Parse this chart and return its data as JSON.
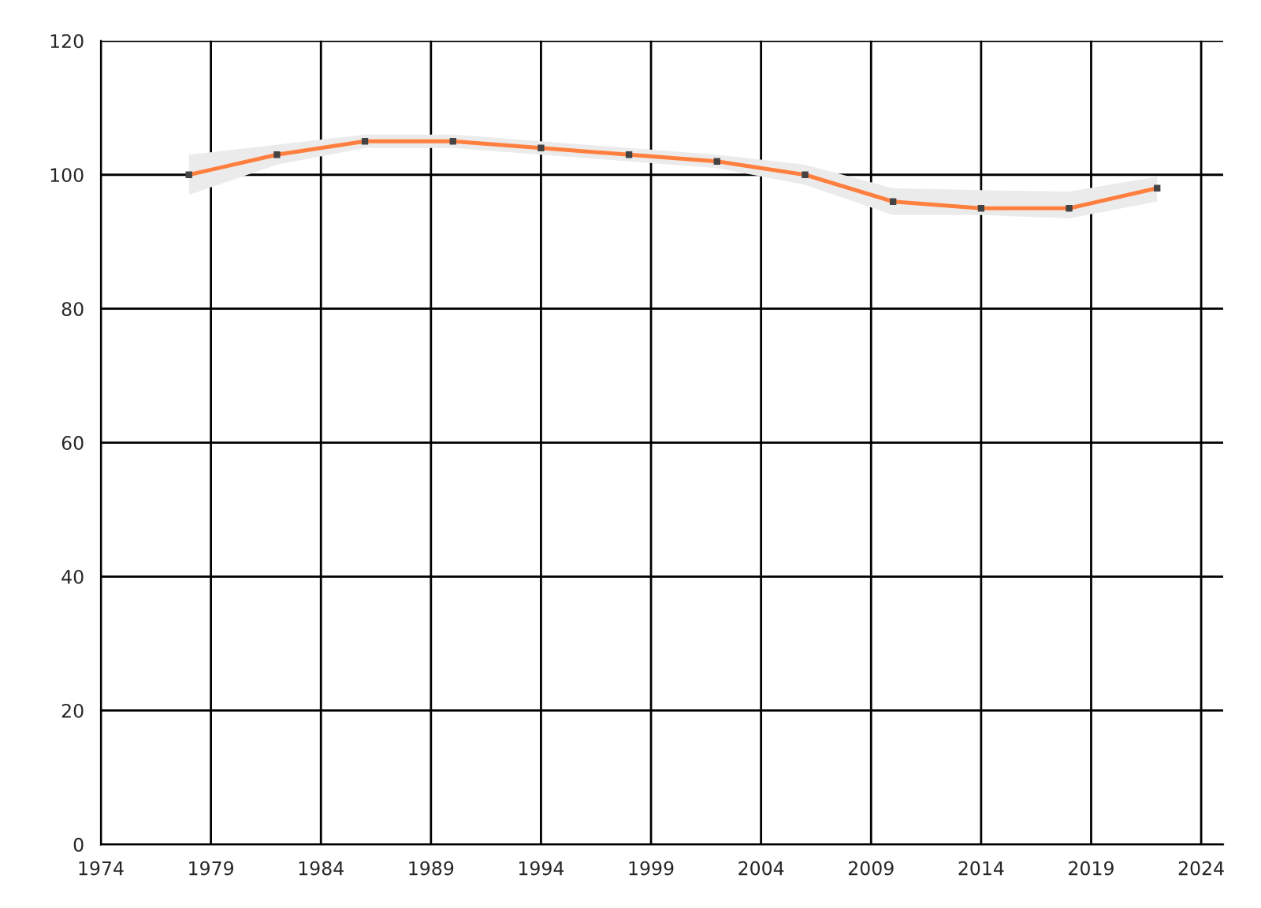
{
  "chart_data": {
    "type": "line",
    "x": [
      1978,
      1982,
      1986,
      1990,
      1994,
      1998,
      2002,
      2006,
      2010,
      2014,
      2018,
      2022
    ],
    "series": [
      {
        "color": "#ff7f3f",
        "values": [
          100,
          103,
          105,
          105,
          104,
          103,
          102,
          100,
          96,
          95,
          95,
          98
        ],
        "lower": [
          97,
          101.5,
          104,
          104,
          103,
          102,
          101,
          98.5,
          94,
          94,
          93.5,
          96
        ],
        "upper": [
          103,
          104.5,
          106,
          106,
          105,
          104,
          103,
          101.5,
          98,
          97.7,
          97.5,
          99.7
        ]
      }
    ],
    "xlim": [
      1974,
      2025
    ],
    "xticks": [
      1974,
      1979,
      1984,
      1989,
      1994,
      1999,
      2004,
      2009,
      2014,
      2019,
      2024
    ],
    "ylim": [
      0,
      120
    ],
    "yticks": [
      0,
      20,
      40,
      60,
      80,
      100,
      120
    ],
    "grid": true,
    "marker": "square",
    "line_style": "solid"
  }
}
